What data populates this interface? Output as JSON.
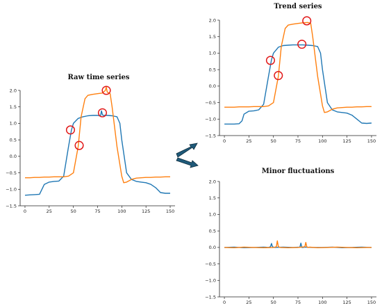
{
  "colors": {
    "series1": "#1f77b4",
    "series2": "#ff7f0e",
    "marker": "#e11919",
    "arrow": "#1f5a7a"
  },
  "chart_data": [
    {
      "id": "raw",
      "type": "line",
      "title": "Raw time series",
      "xlim": [
        -5,
        155
      ],
      "ylim": [
        -1.5,
        2.0
      ],
      "xticks": [
        0,
        25,
        50,
        75,
        100,
        125,
        150
      ],
      "yticks": [
        -1.5,
        -1.0,
        -0.5,
        0.0,
        0.5,
        1.0,
        1.5,
        2.0
      ],
      "xticklabels": [
        "0",
        "25",
        "50",
        "75",
        "100",
        "125",
        "150"
      ],
      "yticklabels": [
        "−1.5",
        "−1.0",
        "−0.5",
        "0.0",
        "0.5",
        "1.0",
        "1.5",
        "2.0"
      ],
      "grid": false,
      "series": [
        {
          "color": "#1f77b4",
          "x": [
            0,
            5,
            10,
            15,
            20,
            25,
            30,
            35,
            40,
            45,
            48,
            50,
            55,
            60,
            65,
            70,
            75,
            78,
            79,
            80,
            81,
            85,
            90,
            95,
            98,
            100,
            105,
            110,
            115,
            120,
            125,
            130,
            135,
            140,
            145,
            150
          ],
          "y": [
            -1.18,
            -1.17,
            -1.16,
            -1.15,
            -0.85,
            -0.78,
            -0.76,
            -0.75,
            -0.6,
            0.3,
            0.8,
            1.0,
            1.15,
            1.2,
            1.23,
            1.24,
            1.24,
            1.22,
            1.38,
            1.26,
            1.24,
            1.24,
            1.23,
            1.2,
            1.0,
            0.5,
            -0.5,
            -0.7,
            -0.76,
            -0.78,
            -0.8,
            -0.85,
            -0.95,
            -1.1,
            -1.12,
            -1.12
          ]
        },
        {
          "color": "#ff7f0e",
          "x": [
            0,
            5,
            10,
            15,
            20,
            25,
            30,
            35,
            40,
            45,
            50,
            55,
            58,
            62,
            65,
            70,
            75,
            80,
            83,
            84,
            85,
            88,
            90,
            95,
            100,
            102,
            105,
            110,
            115,
            120,
            125,
            130,
            135,
            140,
            145,
            150
          ],
          "y": [
            -0.65,
            -0.65,
            -0.64,
            -0.64,
            -0.63,
            -0.63,
            -0.62,
            -0.62,
            -0.62,
            -0.6,
            -0.5,
            0.3,
            1.2,
            1.75,
            1.85,
            1.88,
            1.9,
            1.92,
            2.0,
            2.1,
            1.95,
            1.9,
            1.5,
            0.3,
            -0.6,
            -0.8,
            -0.78,
            -0.7,
            -0.66,
            -0.65,
            -0.64,
            -0.64,
            -0.63,
            -0.63,
            -0.62,
            -0.62
          ]
        }
      ],
      "markers": [
        {
          "x": 47,
          "y": 0.8
        },
        {
          "x": 56,
          "y": 0.33
        },
        {
          "x": 80,
          "y": 1.32
        },
        {
          "x": 84,
          "y": 2.0
        }
      ]
    },
    {
      "id": "trend",
      "type": "line",
      "title": "Trend series",
      "xlim": [
        -5,
        155
      ],
      "ylim": [
        -1.5,
        2.0
      ],
      "xticks": [
        0,
        25,
        50,
        75,
        100,
        125,
        150
      ],
      "yticks": [
        -1.5,
        -1.0,
        -0.5,
        0.0,
        0.5,
        1.0,
        1.5,
        2.0
      ],
      "xticklabels": [
        "0",
        "25",
        "50",
        "75",
        "100",
        "125",
        "150"
      ],
      "yticklabels": [
        "−1.5",
        "−1.0",
        "−0.5",
        "0.0",
        "0.5",
        "1.0",
        "1.5",
        "2.0"
      ],
      "grid": false,
      "series": [
        {
          "color": "#1f77b4",
          "x": [
            0,
            5,
            10,
            15,
            18,
            20,
            25,
            30,
            35,
            40,
            45,
            48,
            50,
            55,
            60,
            65,
            70,
            75,
            80,
            85,
            90,
            95,
            98,
            100,
            105,
            110,
            115,
            120,
            125,
            130,
            135,
            140,
            145,
            150
          ],
          "y": [
            -1.15,
            -1.15,
            -1.15,
            -1.14,
            -1.05,
            -0.85,
            -0.76,
            -0.75,
            -0.72,
            -0.55,
            0.3,
            0.8,
            1.0,
            1.18,
            1.23,
            1.24,
            1.25,
            1.25,
            1.25,
            1.24,
            1.23,
            1.2,
            1.0,
            0.5,
            -0.5,
            -0.72,
            -0.78,
            -0.8,
            -0.82,
            -0.88,
            -1.0,
            -1.12,
            -1.13,
            -1.12
          ]
        },
        {
          "color": "#ff7f0e",
          "x": [
            0,
            5,
            10,
            15,
            20,
            25,
            30,
            35,
            40,
            45,
            50,
            55,
            58,
            62,
            65,
            70,
            75,
            80,
            85,
            88,
            90,
            95,
            100,
            102,
            105,
            110,
            115,
            120,
            125,
            130,
            135,
            140,
            145,
            150
          ],
          "y": [
            -0.64,
            -0.64,
            -0.64,
            -0.63,
            -0.63,
            -0.63,
            -0.62,
            -0.62,
            -0.62,
            -0.6,
            -0.5,
            0.3,
            1.2,
            1.75,
            1.85,
            1.88,
            1.9,
            1.92,
            1.93,
            1.9,
            1.5,
            0.3,
            -0.6,
            -0.8,
            -0.78,
            -0.7,
            -0.66,
            -0.65,
            -0.64,
            -0.64,
            -0.63,
            -0.63,
            -0.62,
            -0.62
          ]
        }
      ],
      "markers": [
        {
          "x": 47,
          "y": 0.78
        },
        {
          "x": 55,
          "y": 0.32
        },
        {
          "x": 79,
          "y": 1.27
        },
        {
          "x": 84,
          "y": 1.98
        }
      ]
    },
    {
      "id": "minor",
      "type": "line",
      "title": "Minor fluctuations",
      "xlim": [
        -5,
        155
      ],
      "ylim": [
        -1.5,
        2.0
      ],
      "xticks": [
        0,
        25,
        50,
        75,
        100,
        125,
        150
      ],
      "yticks": [
        -1.5,
        -1.0,
        -0.5,
        0.0,
        0.5,
        1.0,
        1.5,
        2.0
      ],
      "xticklabels": [
        "0",
        "25",
        "50",
        "75",
        "100",
        "125",
        "150"
      ],
      "yticklabels": [
        "−1.5",
        "−1.0",
        "−0.5",
        "0.0",
        "0.5",
        "1.0",
        "1.5",
        "2.0"
      ],
      "grid": false,
      "series": [
        {
          "color": "#1f77b4",
          "x": [
            0,
            10,
            20,
            30,
            40,
            45,
            47,
            48,
            49,
            51,
            60,
            70,
            77,
            78,
            79,
            80,
            82,
            90,
            100,
            110,
            120,
            130,
            140,
            150
          ],
          "y": [
            0.0,
            0.01,
            -0.01,
            0.0,
            0.01,
            0.0,
            0.02,
            0.12,
            0.02,
            0.0,
            0.01,
            0.0,
            0.01,
            0.13,
            0.0,
            0.0,
            0.01,
            0.0,
            0.0,
            0.01,
            -0.01,
            0.0,
            0.01,
            0.0
          ]
        },
        {
          "color": "#ff7f0e",
          "x": [
            0,
            10,
            20,
            30,
            40,
            50,
            53,
            54,
            55,
            57,
            65,
            75,
            82,
            83,
            84,
            85,
            87,
            95,
            105,
            115,
            125,
            135,
            145,
            150
          ],
          "y": [
            0.0,
            -0.01,
            0.01,
            0.0,
            -0.01,
            0.0,
            0.02,
            0.2,
            0.02,
            0.0,
            -0.01,
            0.0,
            0.02,
            0.15,
            0.02,
            0.0,
            0.01,
            -0.01,
            0.0,
            0.01,
            0.0,
            -0.01,
            0.0,
            0.0
          ]
        }
      ],
      "markers": []
    }
  ]
}
